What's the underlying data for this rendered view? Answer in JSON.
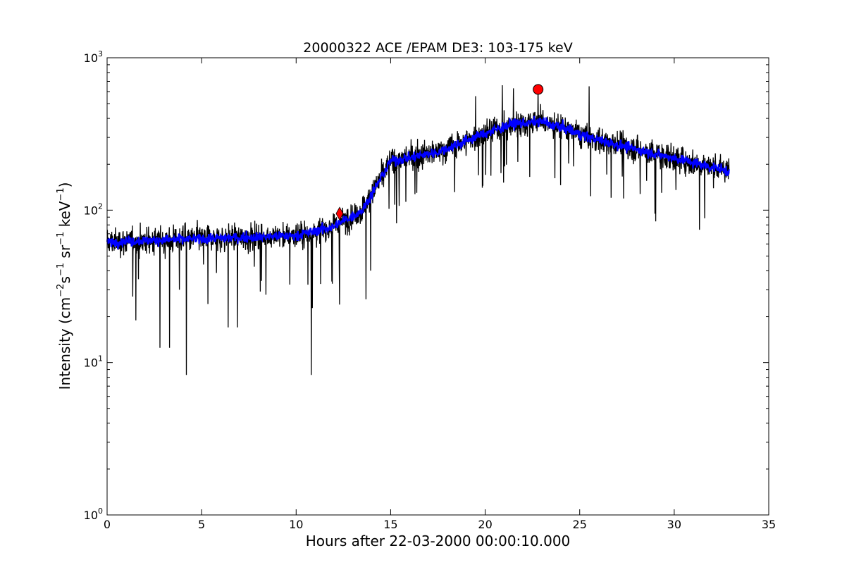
{
  "chart_data": {
    "type": "line",
    "title": "20000322 ACE /EPAM DE3: 103-175 keV",
    "xlabel": "Hours after 22-03-2000 00:00:10.000",
    "ylabel": {
      "prefix": "Intensity (cm",
      "exp1": "−2",
      "mid1": "s",
      "exp2": "−1",
      "mid2": " sr",
      "exp3": "−1",
      "mid3": " keV",
      "exp4": "−1",
      "suffix": ")"
    },
    "xlim": [
      0,
      35
    ],
    "ylim": [
      1,
      1000
    ],
    "yscale": "log",
    "grid": false,
    "x_ticks": [
      0,
      5,
      10,
      15,
      20,
      25,
      30,
      35
    ],
    "x_tick_labels": [
      "0",
      "5",
      "10",
      "15",
      "20",
      "25",
      "30",
      "35"
    ],
    "y_ticks": [
      1,
      10,
      100,
      1000
    ],
    "y_tick_labels": [
      {
        "base": "10",
        "exp": "0"
      },
      {
        "base": "10",
        "exp": "1"
      },
      {
        "base": "10",
        "exp": "2"
      },
      {
        "base": "10",
        "exp": "3"
      }
    ],
    "x_end": 32.9,
    "series": [
      {
        "role": "raw",
        "color": "#000000",
        "profile": [
          [
            0,
            62
          ],
          [
            5,
            65
          ],
          [
            10,
            68
          ],
          [
            12,
            78
          ],
          [
            13.5,
            100
          ],
          [
            15,
            210
          ],
          [
            17.5,
            240
          ],
          [
            20,
            320
          ],
          [
            21.5,
            370
          ],
          [
            23,
            380
          ],
          [
            24,
            350
          ],
          [
            25.5,
            300
          ],
          [
            28,
            250
          ],
          [
            30,
            220
          ],
          [
            32.9,
            180
          ]
        ],
        "dips": [
          [
            2.8,
            12.5
          ],
          [
            3.3,
            12.5
          ],
          [
            4.2,
            8.3
          ],
          [
            10.8,
            8.3
          ],
          [
            6.4,
            17
          ],
          [
            6.9,
            17
          ],
          [
            12.3,
            24
          ],
          [
            13.7,
            26
          ]
        ],
        "spikes": [
          [
            20.9,
            660
          ],
          [
            22.8,
            650
          ],
          [
            25.5,
            650
          ],
          [
            19.5,
            560
          ],
          [
            21.5,
            630
          ]
        ]
      },
      {
        "role": "smoothed",
        "color": "#0000ff",
        "profile": [
          [
            0,
            62
          ],
          [
            5,
            65
          ],
          [
            10,
            68
          ],
          [
            12,
            78
          ],
          [
            13.5,
            100
          ],
          [
            15,
            210
          ],
          [
            17.5,
            240
          ],
          [
            20,
            320
          ],
          [
            21.5,
            370
          ],
          [
            23,
            380
          ],
          [
            24,
            350
          ],
          [
            25.5,
            300
          ],
          [
            28,
            250
          ],
          [
            30,
            220
          ],
          [
            32.9,
            180
          ]
        ]
      }
    ],
    "markers": [
      {
        "shape": "diamond",
        "color": "#ff0000",
        "x": 12.3,
        "y": 95
      },
      {
        "shape": "circle",
        "color": "#ff0000",
        "x": 22.8,
        "y": 620
      }
    ]
  }
}
